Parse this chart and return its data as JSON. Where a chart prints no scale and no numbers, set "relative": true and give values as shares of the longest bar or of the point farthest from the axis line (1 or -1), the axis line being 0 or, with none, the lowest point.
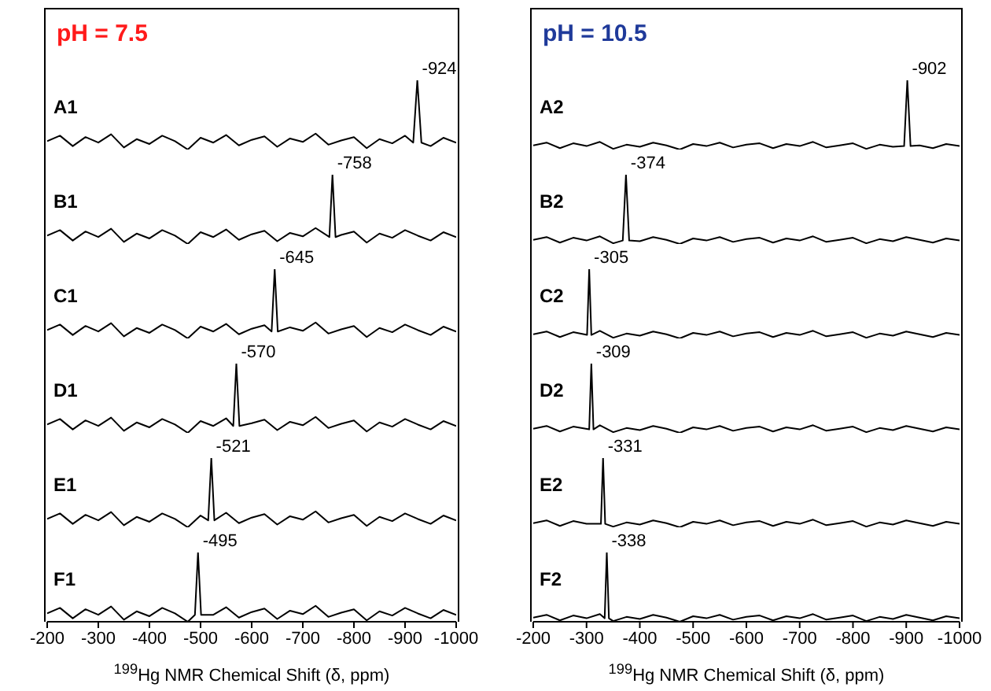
{
  "chart_data": [
    {
      "type": "line",
      "title": "pH = 7.5",
      "relative": true,
      "xlim": [
        -200,
        -1000
      ],
      "tick_labels": false,
      "annotations": [
        {
          "text": "-924",
          "x": -924,
          "y": 1
        }
      ],
      "x": [
        -200,
        -225,
        -250,
        -275,
        -300,
        -325,
        -350,
        -375,
        -400,
        -425,
        -450,
        -475,
        -500,
        -525,
        -550,
        -575,
        -600,
        -625,
        -650,
        -675,
        -700,
        -725,
        -750,
        -775,
        -800,
        -825,
        -850,
        -875,
        -900,
        -916,
        -924,
        -932,
        -950,
        -975,
        -1000
      ],
      "series": [
        {
          "name": "A1",
          "color": "#000000",
          "values": [
            0.12,
            0.2,
            0.05,
            0.18,
            0.1,
            0.22,
            0.03,
            0.15,
            0.08,
            0.2,
            0.12,
            0.0,
            0.17,
            0.1,
            0.21,
            0.06,
            0.14,
            0.19,
            0.04,
            0.16,
            0.11,
            0.23,
            0.07,
            0.13,
            0.18,
            0.02,
            0.15,
            0.09,
            0.2,
            0.1,
            1,
            0.1,
            0.05,
            0.17,
            0.1
          ]
        }
      ]
    },
    {
      "type": "line",
      "relative": true,
      "xlim": [
        -200,
        -1000
      ],
      "tick_labels": false,
      "annotations": [
        {
          "text": "-758",
          "x": -758,
          "y": 1
        }
      ],
      "x": [
        -200,
        -225,
        -250,
        -275,
        -300,
        -325,
        -350,
        -375,
        -400,
        -425,
        -450,
        -475,
        -500,
        -525,
        -550,
        -575,
        -600,
        -625,
        -650,
        -675,
        -700,
        -725,
        -752,
        -758,
        -764,
        -775,
        -800,
        -825,
        -850,
        -875,
        -900,
        -925,
        -950,
        -975,
        -1000
      ],
      "series": [
        {
          "name": "B1",
          "color": "#000000",
          "values": [
            0.12,
            0.2,
            0.05,
            0.18,
            0.1,
            0.22,
            0.03,
            0.15,
            0.08,
            0.2,
            0.12,
            0.0,
            0.17,
            0.1,
            0.21,
            0.06,
            0.14,
            0.19,
            0.04,
            0.16,
            0.11,
            0.23,
            0.1,
            1,
            0.1,
            0.13,
            0.18,
            0.02,
            0.15,
            0.09,
            0.2,
            0.12,
            0.05,
            0.17,
            0.1
          ]
        }
      ]
    },
    {
      "type": "line",
      "relative": true,
      "xlim": [
        -200,
        -1000
      ],
      "tick_labels": false,
      "annotations": [
        {
          "text": "-645",
          "x": -645,
          "y": 1
        }
      ],
      "x": [
        -200,
        -225,
        -250,
        -275,
        -300,
        -325,
        -350,
        -375,
        -400,
        -425,
        -450,
        -475,
        -500,
        -525,
        -550,
        -575,
        -600,
        -625,
        -639,
        -645,
        -651,
        -675,
        -700,
        -725,
        -750,
        -775,
        -800,
        -825,
        -850,
        -875,
        -900,
        -925,
        -950,
        -975,
        -1000
      ],
      "series": [
        {
          "name": "C1",
          "color": "#000000",
          "values": [
            0.12,
            0.2,
            0.05,
            0.18,
            0.1,
            0.22,
            0.03,
            0.15,
            0.08,
            0.2,
            0.12,
            0.0,
            0.17,
            0.1,
            0.21,
            0.06,
            0.14,
            0.19,
            0.1,
            1,
            0.1,
            0.16,
            0.11,
            0.23,
            0.07,
            0.13,
            0.18,
            0.02,
            0.15,
            0.09,
            0.2,
            0.12,
            0.05,
            0.17,
            0.1
          ]
        }
      ]
    },
    {
      "type": "line",
      "relative": true,
      "xlim": [
        -200,
        -1000
      ],
      "tick_labels": false,
      "annotations": [
        {
          "text": "-570",
          "x": -570,
          "y": 1
        }
      ],
      "x": [
        -200,
        -225,
        -250,
        -275,
        -300,
        -325,
        -350,
        -375,
        -400,
        -425,
        -450,
        -475,
        -500,
        -525,
        -550,
        -564,
        -570,
        -576,
        -600,
        -625,
        -650,
        -675,
        -700,
        -725,
        -750,
        -775,
        -800,
        -825,
        -850,
        -875,
        -900,
        -925,
        -950,
        -975,
        -1000
      ],
      "series": [
        {
          "name": "D1",
          "color": "#000000",
          "values": [
            0.12,
            0.2,
            0.05,
            0.18,
            0.1,
            0.22,
            0.03,
            0.15,
            0.08,
            0.2,
            0.12,
            0.0,
            0.17,
            0.1,
            0.21,
            0.1,
            1,
            0.1,
            0.14,
            0.19,
            0.04,
            0.16,
            0.11,
            0.23,
            0.07,
            0.13,
            0.18,
            0.02,
            0.15,
            0.09,
            0.2,
            0.12,
            0.05,
            0.17,
            0.1
          ]
        }
      ]
    },
    {
      "type": "line",
      "relative": true,
      "xlim": [
        -200,
        -1000
      ],
      "tick_labels": false,
      "annotations": [
        {
          "text": "-521",
          "x": -521,
          "y": 1
        }
      ],
      "x": [
        -200,
        -225,
        -250,
        -275,
        -300,
        -325,
        -350,
        -375,
        -400,
        -425,
        -450,
        -475,
        -500,
        -515,
        -521,
        -527,
        -550,
        -575,
        -600,
        -625,
        -650,
        -675,
        -700,
        -725,
        -750,
        -775,
        -800,
        -825,
        -850,
        -875,
        -900,
        -925,
        -950,
        -975,
        -1000
      ],
      "series": [
        {
          "name": "E1",
          "color": "#000000",
          "values": [
            0.12,
            0.2,
            0.05,
            0.18,
            0.1,
            0.22,
            0.03,
            0.15,
            0.08,
            0.2,
            0.12,
            0.0,
            0.17,
            0.1,
            1,
            0.1,
            0.21,
            0.06,
            0.14,
            0.19,
            0.04,
            0.16,
            0.11,
            0.23,
            0.07,
            0.13,
            0.18,
            0.02,
            0.15,
            0.09,
            0.2,
            0.12,
            0.05,
            0.17,
            0.1
          ]
        }
      ]
    },
    {
      "type": "line",
      "relative": true,
      "xlim": [
        -200,
        -1000
      ],
      "xticks": [
        -200,
        -300,
        -400,
        -500,
        -600,
        -700,
        -800,
        -900,
        -1000
      ],
      "tick_labels": "x",
      "xlabel": "$^{199}$Hg NMR Chemical Shift (δ, ppm)",
      "annotations": [
        {
          "text": "-495",
          "x": -495,
          "y": 1
        }
      ],
      "x": [
        -200,
        -225,
        -250,
        -275,
        -300,
        -325,
        -350,
        -375,
        -400,
        -425,
        -450,
        -475,
        -489,
        -495,
        -501,
        -525,
        -550,
        -575,
        -600,
        -625,
        -650,
        -675,
        -700,
        -725,
        -750,
        -775,
        -800,
        -825,
        -850,
        -875,
        -900,
        -925,
        -950,
        -975,
        -1000
      ],
      "series": [
        {
          "name": "F1",
          "color": "#000000",
          "values": [
            0.12,
            0.2,
            0.05,
            0.18,
            0.1,
            0.22,
            0.03,
            0.15,
            0.08,
            0.2,
            0.12,
            0.0,
            0.1,
            1,
            0.1,
            0.1,
            0.21,
            0.06,
            0.14,
            0.19,
            0.04,
            0.16,
            0.11,
            0.23,
            0.07,
            0.13,
            0.18,
            0.02,
            0.15,
            0.09,
            0.2,
            0.12,
            0.05,
            0.17,
            0.1
          ]
        }
      ]
    },
    {
      "type": "line",
      "title": "pH = 10.5",
      "relative": true,
      "xlim": [
        -200,
        -1000
      ],
      "tick_labels": false,
      "annotations": [
        {
          "text": "-902",
          "x": -902,
          "y": 1
        }
      ],
      "x": [
        -200,
        -225,
        -250,
        -275,
        -300,
        -325,
        -350,
        -375,
        -400,
        -425,
        -450,
        -475,
        -500,
        -525,
        -550,
        -575,
        -600,
        -625,
        -650,
        -675,
        -700,
        -725,
        -750,
        -775,
        -800,
        -825,
        -850,
        -875,
        -896,
        -902,
        -908,
        -925,
        -950,
        -975,
        -1000
      ],
      "series": [
        {
          "name": "A2",
          "color": "#000000",
          "values": [
            0.06,
            0.1,
            0.02,
            0.09,
            0.05,
            0.11,
            0.01,
            0.07,
            0.04,
            0.1,
            0.06,
            0.0,
            0.08,
            0.05,
            0.1,
            0.03,
            0.07,
            0.09,
            0.02,
            0.08,
            0.05,
            0.11,
            0.03,
            0.06,
            0.09,
            0.01,
            0.07,
            0.04,
            0.05,
            1,
            0.05,
            0.06,
            0.02,
            0.08,
            0.05
          ]
        }
      ]
    },
    {
      "type": "line",
      "relative": true,
      "xlim": [
        -200,
        -1000
      ],
      "tick_labels": false,
      "annotations": [
        {
          "text": "-374",
          "x": -374,
          "y": 1
        }
      ],
      "x": [
        -200,
        -225,
        -250,
        -275,
        -300,
        -325,
        -350,
        -368,
        -374,
        -380,
        -400,
        -425,
        -450,
        -475,
        -500,
        -525,
        -550,
        -575,
        -600,
        -625,
        -650,
        -675,
        -700,
        -725,
        -750,
        -775,
        -800,
        -825,
        -850,
        -875,
        -900,
        -925,
        -950,
        -975,
        -1000
      ],
      "series": [
        {
          "name": "B2",
          "color": "#000000",
          "values": [
            0.06,
            0.1,
            0.02,
            0.09,
            0.05,
            0.11,
            0.01,
            0.05,
            1,
            0.05,
            0.04,
            0.1,
            0.06,
            0.0,
            0.08,
            0.05,
            0.1,
            0.03,
            0.07,
            0.09,
            0.02,
            0.08,
            0.05,
            0.11,
            0.03,
            0.06,
            0.09,
            0.01,
            0.07,
            0.04,
            0.1,
            0.06,
            0.02,
            0.08,
            0.05
          ]
        }
      ]
    },
    {
      "type": "line",
      "relative": true,
      "xlim": [
        -200,
        -1000
      ],
      "tick_labels": false,
      "annotations": [
        {
          "text": "-305",
          "x": -305,
          "y": 1
        }
      ],
      "x": [
        -200,
        -225,
        -250,
        -275,
        -301,
        -305,
        -309,
        -325,
        -350,
        -375,
        -400,
        -425,
        -450,
        -475,
        -500,
        -525,
        -550,
        -575,
        -600,
        -625,
        -650,
        -675,
        -700,
        -725,
        -750,
        -775,
        -800,
        -825,
        -850,
        -875,
        -900,
        -925,
        -950,
        -975,
        -1000
      ],
      "series": [
        {
          "name": "C2",
          "color": "#000000",
          "values": [
            0.06,
            0.1,
            0.02,
            0.09,
            0.05,
            1,
            0.05,
            0.11,
            0.01,
            0.07,
            0.04,
            0.1,
            0.06,
            0.0,
            0.08,
            0.05,
            0.1,
            0.03,
            0.07,
            0.09,
            0.02,
            0.08,
            0.05,
            0.11,
            0.03,
            0.06,
            0.09,
            0.01,
            0.07,
            0.04,
            0.1,
            0.06,
            0.02,
            0.08,
            0.05
          ]
        }
      ]
    },
    {
      "type": "line",
      "relative": true,
      "xlim": [
        -200,
        -1000
      ],
      "tick_labels": false,
      "annotations": [
        {
          "text": "-309",
          "x": -309,
          "y": 1
        }
      ],
      "x": [
        -200,
        -225,
        -250,
        -275,
        -305,
        -309,
        -313,
        -325,
        -350,
        -375,
        -400,
        -425,
        -450,
        -475,
        -500,
        -525,
        -550,
        -575,
        -600,
        -625,
        -650,
        -675,
        -700,
        -725,
        -750,
        -775,
        -800,
        -825,
        -850,
        -875,
        -900,
        -925,
        -950,
        -975,
        -1000
      ],
      "series": [
        {
          "name": "D2",
          "color": "#000000",
          "values": [
            0.06,
            0.1,
            0.02,
            0.09,
            0.05,
            1,
            0.05,
            0.11,
            0.01,
            0.07,
            0.04,
            0.1,
            0.06,
            0.0,
            0.08,
            0.05,
            0.1,
            0.03,
            0.07,
            0.09,
            0.02,
            0.08,
            0.05,
            0.11,
            0.03,
            0.06,
            0.09,
            0.01,
            0.07,
            0.04,
            0.1,
            0.06,
            0.02,
            0.08,
            0.05
          ]
        }
      ]
    },
    {
      "type": "line",
      "relative": true,
      "xlim": [
        -200,
        -1000
      ],
      "tick_labels": false,
      "annotations": [
        {
          "text": "-331",
          "x": -331,
          "y": 1
        }
      ],
      "x": [
        -200,
        -225,
        -250,
        -275,
        -300,
        -327,
        -331,
        -335,
        -350,
        -375,
        -400,
        -425,
        -450,
        -475,
        -500,
        -525,
        -550,
        -575,
        -600,
        -625,
        -650,
        -675,
        -700,
        -725,
        -750,
        -775,
        -800,
        -825,
        -850,
        -875,
        -900,
        -925,
        -950,
        -975,
        -1000
      ],
      "series": [
        {
          "name": "E2",
          "color": "#000000",
          "values": [
            0.06,
            0.1,
            0.02,
            0.09,
            0.05,
            0.05,
            1,
            0.05,
            0.01,
            0.07,
            0.04,
            0.1,
            0.06,
            0.0,
            0.08,
            0.05,
            0.1,
            0.03,
            0.07,
            0.09,
            0.02,
            0.08,
            0.05,
            0.11,
            0.03,
            0.06,
            0.09,
            0.01,
            0.07,
            0.04,
            0.1,
            0.06,
            0.02,
            0.08,
            0.05
          ]
        }
      ]
    },
    {
      "type": "line",
      "relative": true,
      "xlim": [
        -200,
        -1000
      ],
      "xticks": [
        -200,
        -300,
        -400,
        -500,
        -600,
        -700,
        -800,
        -900,
        -1000
      ],
      "tick_labels": "x",
      "xlabel": "$^{199}$Hg NMR Chemical Shift (δ, ppm)",
      "annotations": [
        {
          "text": "-338",
          "x": -338,
          "y": 1
        }
      ],
      "x": [
        -200,
        -225,
        -250,
        -275,
        -300,
        -325,
        -334,
        -338,
        -342,
        -350,
        -375,
        -400,
        -425,
        -450,
        -475,
        -500,
        -525,
        -550,
        -575,
        -600,
        -625,
        -650,
        -675,
        -700,
        -725,
        -750,
        -775,
        -800,
        -825,
        -850,
        -875,
        -900,
        -925,
        -950,
        -975,
        -1000
      ],
      "series": [
        {
          "name": "F2",
          "color": "#000000",
          "values": [
            0.06,
            0.1,
            0.02,
            0.09,
            0.05,
            0.11,
            0.05,
            1,
            0.05,
            0.01,
            0.07,
            0.04,
            0.1,
            0.06,
            0.0,
            0.08,
            0.05,
            0.1,
            0.03,
            0.07,
            0.09,
            0.02,
            0.08,
            0.05,
            0.11,
            0.03,
            0.06,
            0.09,
            0.01,
            0.07,
            0.04,
            0.1,
            0.06,
            0.02,
            0.08,
            0.05
          ]
        }
      ]
    }
  ]
}
